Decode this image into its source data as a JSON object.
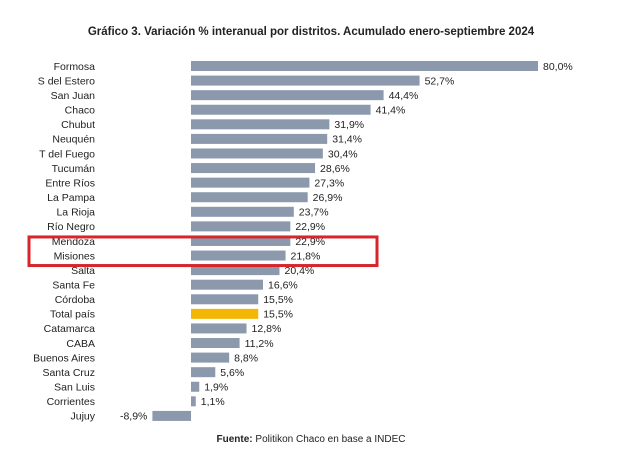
{
  "chart_data": {
    "type": "bar",
    "orientation": "horizontal",
    "title": "Gráfico 3. Variación % interanual por distritos. Acumulado enero-septiembre 2024",
    "categories": [
      "Formosa",
      "S del Estero",
      "San Juan",
      "Chaco",
      "Chubut",
      "Neuquén",
      "T del Fuego",
      "Tucumán",
      "Entre Ríos",
      "La Pampa",
      "La Rioja",
      "Río Negro",
      "Mendoza",
      "Misiones",
      "Salta",
      "Santa Fe",
      "Córdoba",
      "Total país",
      "Catamarca",
      "CABA",
      "Buenos Aires",
      "Santa Cruz",
      "San Luis",
      "Corrientes",
      "Jujuy"
    ],
    "values": [
      80.0,
      52.7,
      44.4,
      41.4,
      31.9,
      31.4,
      30.4,
      28.6,
      27.3,
      26.9,
      23.7,
      22.9,
      22.9,
      21.8,
      20.4,
      16.6,
      15.5,
      15.5,
      12.8,
      11.2,
      8.8,
      5.6,
      1.9,
      1.1,
      -8.9
    ],
    "value_labels": [
      "80,0%",
      "52,7%",
      "44,4%",
      "41,4%",
      "31,9%",
      "31,4%",
      "30,4%",
      "28,6%",
      "27,3%",
      "26,9%",
      "23,7%",
      "22,9%",
      "22,9%",
      "21,8%",
      "20,4%",
      "16,6%",
      "15,5%",
      "15,5%",
      "12,8%",
      "11,2%",
      "8,8%",
      "5,6%",
      "1,9%",
      "1,1%",
      "-8,9%"
    ],
    "highlighted_bar": "Total país",
    "highlighted_bar_color": "#f2b705",
    "bar_color": "#8c99ad",
    "boxed_category": "Misiones",
    "box_color": "#d6262b",
    "xlim": [
      -8.9,
      80.0
    ],
    "grid": false,
    "legend": false
  },
  "source": {
    "label": "Fuente:",
    "text": " Politikon Chaco en base a INDEC"
  }
}
